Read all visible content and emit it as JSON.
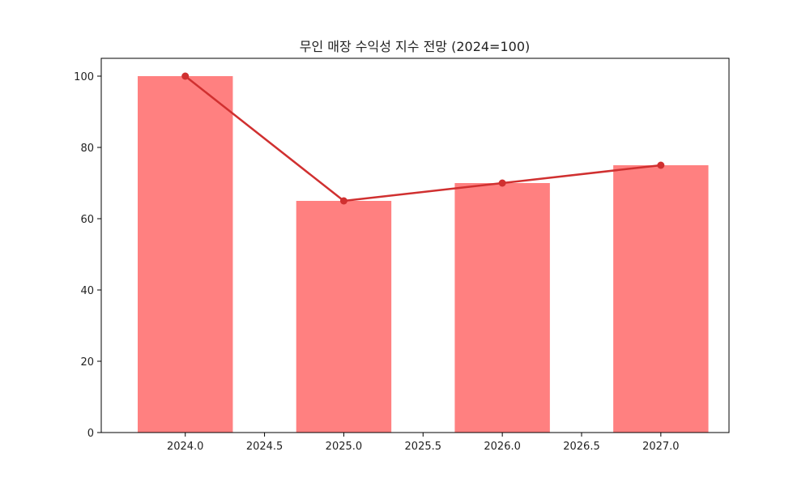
{
  "chart_data": {
    "type": "bar",
    "title": "무인 매장 수익성 지수 전망 (2024=100)",
    "xlabel": "",
    "ylabel": "",
    "x": [
      2024,
      2025,
      2026,
      2027
    ],
    "values": [
      100,
      65,
      70,
      75
    ],
    "line_values": [
      100,
      65,
      70,
      75
    ],
    "xlim": [
      2023.47,
      2027.43
    ],
    "ylim": [
      0,
      105
    ],
    "xticks": [
      "2024.0",
      "2024.5",
      "2025.0",
      "2025.5",
      "2026.0",
      "2026.5",
      "2027.0"
    ],
    "xtick_values": [
      2024.0,
      2024.5,
      2025.0,
      2025.5,
      2026.0,
      2026.5,
      2027.0
    ],
    "yticks": [
      "0",
      "20",
      "40",
      "60",
      "80",
      "100"
    ],
    "ytick_values": [
      0,
      20,
      40,
      60,
      80,
      100
    ],
    "bar_width": 0.6,
    "grid": false,
    "colors": {
      "bar": "#ff8080",
      "line": "#d03030",
      "axis": "#000000"
    }
  }
}
